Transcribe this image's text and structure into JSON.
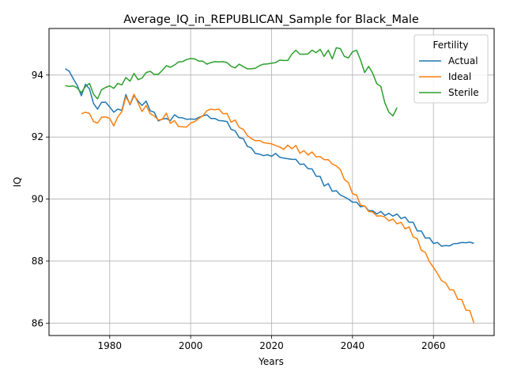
{
  "chart_data": {
    "type": "line",
    "title": "Average_IQ_in_REPUBLICAN_Sample for Black_Male",
    "xlabel": "Years",
    "ylabel": "IQ",
    "xlim": [
      1965,
      2075
    ],
    "ylim": [
      85.6,
      95.5
    ],
    "xticks": [
      1980,
      2000,
      2020,
      2040,
      2060
    ],
    "yticks": [
      86,
      88,
      90,
      92,
      94
    ],
    "grid": true,
    "legend": {
      "title": "Fertility",
      "placement": "top-right"
    },
    "series": [
      {
        "name": "Actual",
        "color": "#1f77b4",
        "points": [
          [
            1969,
            94.2
          ],
          [
            1970,
            94.12
          ],
          [
            1971,
            93.88
          ],
          [
            1972,
            93.66
          ],
          [
            1973,
            93.33
          ],
          [
            1974,
            93.7
          ],
          [
            1975,
            93.55
          ],
          [
            1976,
            93.08
          ],
          [
            1977,
            92.9
          ],
          [
            1978,
            93.12
          ],
          [
            1979,
            93.12
          ],
          [
            1980,
            92.97
          ],
          [
            1981,
            92.8
          ],
          [
            1982,
            92.9
          ],
          [
            1983,
            92.86
          ],
          [
            1984,
            93.37
          ],
          [
            1985,
            93.04
          ],
          [
            1986,
            93.34
          ],
          [
            1987,
            93.16
          ],
          [
            1988,
            93.02
          ],
          [
            1989,
            93.16
          ],
          [
            1990,
            92.85
          ],
          [
            1991,
            92.8
          ],
          [
            1992,
            92.52
          ],
          [
            1993,
            92.58
          ],
          [
            1994,
            92.6
          ],
          [
            1995,
            92.53
          ],
          [
            1996,
            92.72
          ],
          [
            1997,
            92.63
          ],
          [
            1998,
            92.62
          ],
          [
            1999,
            92.57
          ],
          [
            2000,
            92.58
          ],
          [
            2001,
            92.57
          ],
          [
            2002,
            92.63
          ],
          [
            2003,
            92.68
          ],
          [
            2004,
            92.72
          ],
          [
            2005,
            92.6
          ],
          [
            2006,
            92.6
          ],
          [
            2007,
            92.53
          ],
          [
            2008,
            92.52
          ],
          [
            2009,
            92.5
          ],
          [
            2010,
            92.25
          ],
          [
            2011,
            92.2
          ],
          [
            2012,
            91.98
          ],
          [
            2013,
            91.95
          ],
          [
            2014,
            91.7
          ],
          [
            2015,
            91.65
          ],
          [
            2016,
            91.47
          ],
          [
            2017,
            91.45
          ],
          [
            2018,
            91.4
          ],
          [
            2019,
            91.43
          ],
          [
            2020,
            91.38
          ],
          [
            2021,
            91.47
          ],
          [
            2022,
            91.35
          ],
          [
            2023,
            91.32
          ],
          [
            2024,
            91.3
          ],
          [
            2025,
            91.28
          ],
          [
            2026,
            91.28
          ],
          [
            2027,
            91.12
          ],
          [
            2028,
            91.13
          ],
          [
            2029,
            90.98
          ],
          [
            2030,
            90.97
          ],
          [
            2031,
            90.74
          ],
          [
            2032,
            90.73
          ],
          [
            2033,
            90.42
          ],
          [
            2034,
            90.5
          ],
          [
            2035,
            90.25
          ],
          [
            2036,
            90.27
          ],
          [
            2037,
            90.13
          ],
          [
            2038,
            90.07
          ],
          [
            2039,
            90.0
          ],
          [
            2040,
            89.9
          ],
          [
            2041,
            89.9
          ],
          [
            2042,
            89.75
          ],
          [
            2043,
            89.78
          ],
          [
            2044,
            89.63
          ],
          [
            2045,
            89.62
          ],
          [
            2046,
            89.52
          ],
          [
            2047,
            89.6
          ],
          [
            2048,
            89.47
          ],
          [
            2049,
            89.54
          ],
          [
            2050,
            89.45
          ],
          [
            2051,
            89.52
          ],
          [
            2052,
            89.37
          ],
          [
            2053,
            89.42
          ],
          [
            2054,
            89.25
          ],
          [
            2055,
            89.25
          ],
          [
            2056,
            88.97
          ],
          [
            2057,
            88.97
          ],
          [
            2058,
            88.74
          ],
          [
            2059,
            88.75
          ],
          [
            2060,
            88.57
          ],
          [
            2061,
            88.6
          ],
          [
            2062,
            88.48
          ],
          [
            2063,
            88.5
          ],
          [
            2064,
            88.49
          ],
          [
            2065,
            88.56
          ],
          [
            2066,
            88.57
          ],
          [
            2067,
            88.6
          ],
          [
            2068,
            88.59
          ],
          [
            2069,
            88.61
          ],
          [
            2070,
            88.57
          ]
        ]
      },
      {
        "name": "Ideal",
        "color": "#ff7f0e",
        "points": [
          [
            1973,
            92.75
          ],
          [
            1974,
            92.8
          ],
          [
            1975,
            92.76
          ],
          [
            1976,
            92.5
          ],
          [
            1977,
            92.45
          ],
          [
            1978,
            92.64
          ],
          [
            1979,
            92.65
          ],
          [
            1980,
            92.6
          ],
          [
            1981,
            92.36
          ],
          [
            1982,
            92.65
          ],
          [
            1983,
            92.82
          ],
          [
            1984,
            93.3
          ],
          [
            1985,
            93.06
          ],
          [
            1986,
            93.38
          ],
          [
            1987,
            93.1
          ],
          [
            1988,
            92.82
          ],
          [
            1989,
            93.02
          ],
          [
            1990,
            92.75
          ],
          [
            1991,
            92.68
          ],
          [
            1992,
            92.55
          ],
          [
            1993,
            92.57
          ],
          [
            1994,
            92.77
          ],
          [
            1995,
            92.44
          ],
          [
            1996,
            92.53
          ],
          [
            1997,
            92.34
          ],
          [
            1998,
            92.33
          ],
          [
            1999,
            92.32
          ],
          [
            2000,
            92.45
          ],
          [
            2001,
            92.5
          ],
          [
            2002,
            92.6
          ],
          [
            2003,
            92.68
          ],
          [
            2004,
            92.85
          ],
          [
            2005,
            92.9
          ],
          [
            2006,
            92.88
          ],
          [
            2007,
            92.9
          ],
          [
            2008,
            92.75
          ],
          [
            2009,
            92.76
          ],
          [
            2010,
            92.48
          ],
          [
            2011,
            92.55
          ],
          [
            2012,
            92.31
          ],
          [
            2013,
            92.25
          ],
          [
            2014,
            92.05
          ],
          [
            2015,
            91.95
          ],
          [
            2016,
            91.88
          ],
          [
            2017,
            91.89
          ],
          [
            2018,
            91.82
          ],
          [
            2019,
            91.8
          ],
          [
            2020,
            91.78
          ],
          [
            2021,
            91.73
          ],
          [
            2022,
            91.68
          ],
          [
            2023,
            91.6
          ],
          [
            2024,
            91.74
          ],
          [
            2025,
            91.62
          ],
          [
            2026,
            91.73
          ],
          [
            2027,
            91.48
          ],
          [
            2028,
            91.56
          ],
          [
            2029,
            91.42
          ],
          [
            2030,
            91.52
          ],
          [
            2031,
            91.36
          ],
          [
            2032,
            91.37
          ],
          [
            2033,
            91.27
          ],
          [
            2034,
            91.27
          ],
          [
            2035,
            91.13
          ],
          [
            2036,
            91.07
          ],
          [
            2037,
            90.95
          ],
          [
            2038,
            90.63
          ],
          [
            2039,
            90.53
          ],
          [
            2040,
            90.17
          ],
          [
            2041,
            90.13
          ],
          [
            2042,
            89.8
          ],
          [
            2043,
            89.78
          ],
          [
            2044,
            89.6
          ],
          [
            2045,
            89.58
          ],
          [
            2046,
            89.45
          ],
          [
            2047,
            89.46
          ],
          [
            2048,
            89.42
          ],
          [
            2049,
            89.3
          ],
          [
            2050,
            89.35
          ],
          [
            2051,
            89.2
          ],
          [
            2052,
            89.25
          ],
          [
            2053,
            89.04
          ],
          [
            2054,
            89.1
          ],
          [
            2055,
            88.78
          ],
          [
            2056,
            88.72
          ],
          [
            2057,
            88.35
          ],
          [
            2058,
            88.28
          ],
          [
            2059,
            87.98
          ],
          [
            2060,
            87.8
          ],
          [
            2061,
            87.6
          ],
          [
            2062,
            87.37
          ],
          [
            2063,
            87.3
          ],
          [
            2064,
            87.08
          ],
          [
            2065,
            87.07
          ],
          [
            2066,
            86.77
          ],
          [
            2067,
            86.76
          ],
          [
            2068,
            86.42
          ],
          [
            2069,
            86.4
          ],
          [
            2070,
            86.0
          ]
        ]
      },
      {
        "name": "Sterile",
        "color": "#2ca02c",
        "points": [
          [
            1969,
            93.66
          ],
          [
            1970,
            93.63
          ],
          [
            1971,
            93.65
          ],
          [
            1972,
            93.58
          ],
          [
            1973,
            93.43
          ],
          [
            1974,
            93.63
          ],
          [
            1975,
            93.73
          ],
          [
            1976,
            93.38
          ],
          [
            1977,
            93.23
          ],
          [
            1978,
            93.53
          ],
          [
            1979,
            93.6
          ],
          [
            1980,
            93.65
          ],
          [
            1981,
            93.57
          ],
          [
            1982,
            93.73
          ],
          [
            1983,
            93.68
          ],
          [
            1984,
            93.92
          ],
          [
            1985,
            93.8
          ],
          [
            1986,
            94.05
          ],
          [
            1987,
            93.85
          ],
          [
            1988,
            93.9
          ],
          [
            1989,
            94.08
          ],
          [
            1990,
            94.12
          ],
          [
            1991,
            94.02
          ],
          [
            1992,
            94.02
          ],
          [
            1993,
            94.15
          ],
          [
            1994,
            94.3
          ],
          [
            1995,
            94.25
          ],
          [
            1996,
            94.32
          ],
          [
            1997,
            94.42
          ],
          [
            1998,
            94.43
          ],
          [
            1999,
            94.5
          ],
          [
            2000,
            94.53
          ],
          [
            2001,
            94.52
          ],
          [
            2002,
            94.45
          ],
          [
            2003,
            94.45
          ],
          [
            2004,
            94.35
          ],
          [
            2005,
            94.4
          ],
          [
            2006,
            94.43
          ],
          [
            2007,
            94.42
          ],
          [
            2008,
            94.43
          ],
          [
            2009,
            94.4
          ],
          [
            2010,
            94.28
          ],
          [
            2011,
            94.23
          ],
          [
            2012,
            94.35
          ],
          [
            2013,
            94.27
          ],
          [
            2014,
            94.2
          ],
          [
            2015,
            94.2
          ],
          [
            2016,
            94.22
          ],
          [
            2017,
            94.3
          ],
          [
            2018,
            94.35
          ],
          [
            2019,
            94.36
          ],
          [
            2020,
            94.38
          ],
          [
            2021,
            94.4
          ],
          [
            2022,
            94.48
          ],
          [
            2023,
            94.47
          ],
          [
            2024,
            94.47
          ],
          [
            2025,
            94.67
          ],
          [
            2026,
            94.8
          ],
          [
            2027,
            94.67
          ],
          [
            2028,
            94.67
          ],
          [
            2029,
            94.68
          ],
          [
            2030,
            94.8
          ],
          [
            2031,
            94.72
          ],
          [
            2032,
            94.83
          ],
          [
            2033,
            94.6
          ],
          [
            2034,
            94.8
          ],
          [
            2035,
            94.52
          ],
          [
            2036,
            94.88
          ],
          [
            2037,
            94.85
          ],
          [
            2038,
            94.6
          ],
          [
            2039,
            94.55
          ],
          [
            2040,
            94.75
          ],
          [
            2041,
            94.8
          ],
          [
            2042,
            94.48
          ],
          [
            2043,
            94.08
          ],
          [
            2044,
            94.28
          ],
          [
            2045,
            94.05
          ],
          [
            2046,
            93.72
          ],
          [
            2047,
            93.63
          ],
          [
            2048,
            93.1
          ],
          [
            2049,
            92.8
          ],
          [
            2050,
            92.68
          ],
          [
            2051,
            92.95
          ]
        ]
      }
    ]
  }
}
